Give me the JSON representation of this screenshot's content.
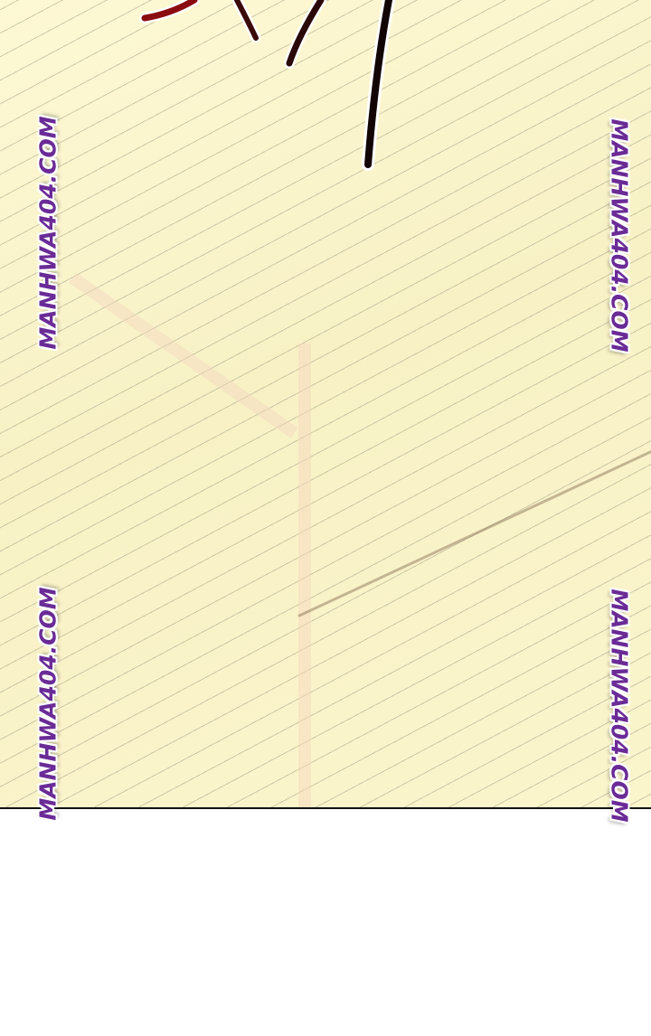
{
  "watermarks": [
    "MANHWA404.COM",
    "MANHWA404.COM",
    "MANHWA404.COM",
    "MANHWA404.COM"
  ],
  "colors": {
    "watermark": "#6a2b96",
    "background": "#fbf5cc",
    "border": "#111111"
  }
}
